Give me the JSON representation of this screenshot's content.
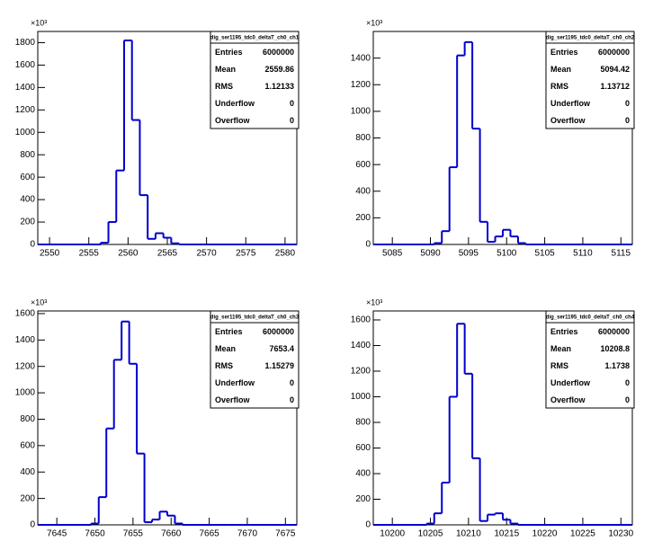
{
  "chart_data": [
    {
      "type": "histogram",
      "y_scale_label": "×10³",
      "color": "#0000cc",
      "xlim": [
        2548.5,
        2581.5
      ],
      "ylim": [
        0,
        1900
      ],
      "xticks": [
        2550,
        2555,
        2560,
        2565,
        2570,
        2575,
        2580
      ],
      "yticks": [
        0,
        200,
        400,
        600,
        800,
        1000,
        1200,
        1400,
        1600,
        1800
      ],
      "bins": [
        2548.5,
        2549.5,
        2550.5,
        2551.5,
        2552.5,
        2553.5,
        2554.5,
        2555.5,
        2556.5,
        2557.5,
        2558.5,
        2559.5,
        2560.5,
        2561.5,
        2562.5,
        2563.5,
        2564.5,
        2565.5,
        2566.5,
        2567.5,
        2568.5,
        2569.5,
        2570.5,
        2571.5,
        2572.5,
        2573.5,
        2574.5,
        2575.5,
        2576.5,
        2577.5,
        2578.5,
        2579.5,
        2580.5,
        2581.5
      ],
      "values": [
        0,
        0,
        0,
        0,
        0,
        0,
        0,
        0,
        15,
        200,
        660,
        1820,
        1110,
        440,
        50,
        100,
        60,
        10,
        0,
        0,
        0,
        0,
        0,
        0,
        0,
        0,
        0,
        0,
        0,
        0,
        0,
        0,
        0
      ],
      "stats_title": "dig_ser1195_tdc0_deltaT_ch0_ch1",
      "stats": [
        {
          "label": "Entries",
          "value": 6000000
        },
        {
          "label": "Mean",
          "value": 2559.86
        },
        {
          "label": "RMS",
          "value": 1.12133
        },
        {
          "label": "Underflow",
          "value": 0
        },
        {
          "label": "Overflow",
          "value": 0
        }
      ]
    },
    {
      "type": "histogram",
      "y_scale_label": "×10³",
      "color": "#0000cc",
      "xlim": [
        5082.5,
        5116.5
      ],
      "ylim": [
        0,
        1600
      ],
      "xticks": [
        5085,
        5090,
        5095,
        5100,
        5105,
        5110,
        5115
      ],
      "yticks": [
        0,
        200,
        400,
        600,
        800,
        1000,
        1200,
        1400
      ],
      "bins": [
        5082.5,
        5083.5,
        5084.5,
        5085.5,
        5086.5,
        5087.5,
        5088.5,
        5089.5,
        5090.5,
        5091.5,
        5092.5,
        5093.5,
        5094.5,
        5095.5,
        5096.5,
        5097.5,
        5098.5,
        5099.5,
        5100.5,
        5101.5,
        5102.5,
        5103.5,
        5104.5,
        5105.5,
        5106.5,
        5107.5,
        5108.5,
        5109.5,
        5110.5,
        5111.5,
        5112.5,
        5113.5,
        5114.5,
        5115.5,
        5116.5
      ],
      "values": [
        0,
        0,
        0,
        0,
        0,
        0,
        0,
        0,
        10,
        100,
        580,
        1420,
        1520,
        870,
        170,
        20,
        60,
        110,
        60,
        10,
        0,
        0,
        0,
        0,
        0,
        0,
        0,
        0,
        0,
        0,
        0,
        0,
        0,
        0
      ],
      "stats_title": "dig_ser1195_tdc0_deltaT_ch0_ch2",
      "stats": [
        {
          "label": "Entries",
          "value": 6000000
        },
        {
          "label": "Mean",
          "value": 5094.42
        },
        {
          "label": "RMS",
          "value": 1.13712
        },
        {
          "label": "Underflow",
          "value": 0
        },
        {
          "label": "Overflow",
          "value": 0
        }
      ]
    },
    {
      "type": "histogram",
      "y_scale_label": "×10³",
      "color": "#0000cc",
      "xlim": [
        7642.5,
        7676.5
      ],
      "ylim": [
        0,
        1620
      ],
      "xticks": [
        7645,
        7650,
        7655,
        7660,
        7665,
        7670,
        7675
      ],
      "yticks": [
        0,
        200,
        400,
        600,
        800,
        1000,
        1200,
        1400,
        1600
      ],
      "bins": [
        7642.5,
        7643.5,
        7644.5,
        7645.5,
        7646.5,
        7647.5,
        7648.5,
        7649.5,
        7650.5,
        7651.5,
        7652.5,
        7653.5,
        7654.5,
        7655.5,
        7656.5,
        7657.5,
        7658.5,
        7659.5,
        7660.5,
        7661.5,
        7662.5,
        7663.5,
        7664.5,
        7665.5,
        7666.5,
        7667.5,
        7668.5,
        7669.5,
        7670.5,
        7671.5,
        7672.5,
        7673.5,
        7674.5,
        7675.5,
        7676.5
      ],
      "values": [
        0,
        0,
        0,
        0,
        0,
        0,
        0,
        10,
        210,
        730,
        1250,
        1540,
        1220,
        540,
        20,
        40,
        100,
        70,
        10,
        0,
        0,
        0,
        0,
        0,
        0,
        0,
        0,
        0,
        0,
        0,
        0,
        0,
        0,
        0
      ],
      "stats_title": "dig_ser1195_tdc0_deltaT_ch0_ch3",
      "stats": [
        {
          "label": "Entries",
          "value": 6000000
        },
        {
          "label": "Mean",
          "value": 7653.4
        },
        {
          "label": "RMS",
          "value": 1.15279
        },
        {
          "label": "Underflow",
          "value": 0
        },
        {
          "label": "Overflow",
          "value": 0
        }
      ]
    },
    {
      "type": "histogram",
      "y_scale_label": "×10³",
      "color": "#0000cc",
      "xlim": [
        10197.5,
        10231.5
      ],
      "ylim": [
        0,
        1670
      ],
      "xticks": [
        10200,
        10205,
        10210,
        10215,
        10220,
        10225,
        10230
      ],
      "yticks": [
        0,
        200,
        400,
        600,
        800,
        1000,
        1200,
        1400,
        1600
      ],
      "bins": [
        10197.5,
        10198.5,
        10199.5,
        10200.5,
        10201.5,
        10202.5,
        10203.5,
        10204.5,
        10205.5,
        10206.5,
        10207.5,
        10208.5,
        10209.5,
        10210.5,
        10211.5,
        10212.5,
        10213.5,
        10214.5,
        10215.5,
        10216.5,
        10217.5,
        10218.5,
        10219.5,
        10220.5,
        10221.5,
        10222.5,
        10223.5,
        10224.5,
        10225.5,
        10226.5,
        10227.5,
        10228.5,
        10229.5,
        10230.5,
        10231.5
      ],
      "values": [
        0,
        0,
        0,
        0,
        0,
        0,
        0,
        10,
        90,
        330,
        1000,
        1570,
        1180,
        520,
        30,
        80,
        90,
        40,
        10,
        0,
        0,
        0,
        0,
        0,
        0,
        0,
        0,
        0,
        0,
        0,
        0,
        0,
        0,
        0
      ],
      "stats_title": "dig_ser1195_tdc0_deltaT_ch0_ch4",
      "stats": [
        {
          "label": "Entries",
          "value": 6000000
        },
        {
          "label": "Mean",
          "value": 10208.8
        },
        {
          "label": "RMS",
          "value": 1.1738
        },
        {
          "label": "Underflow",
          "value": 0
        },
        {
          "label": "Overflow",
          "value": 0
        }
      ]
    }
  ]
}
